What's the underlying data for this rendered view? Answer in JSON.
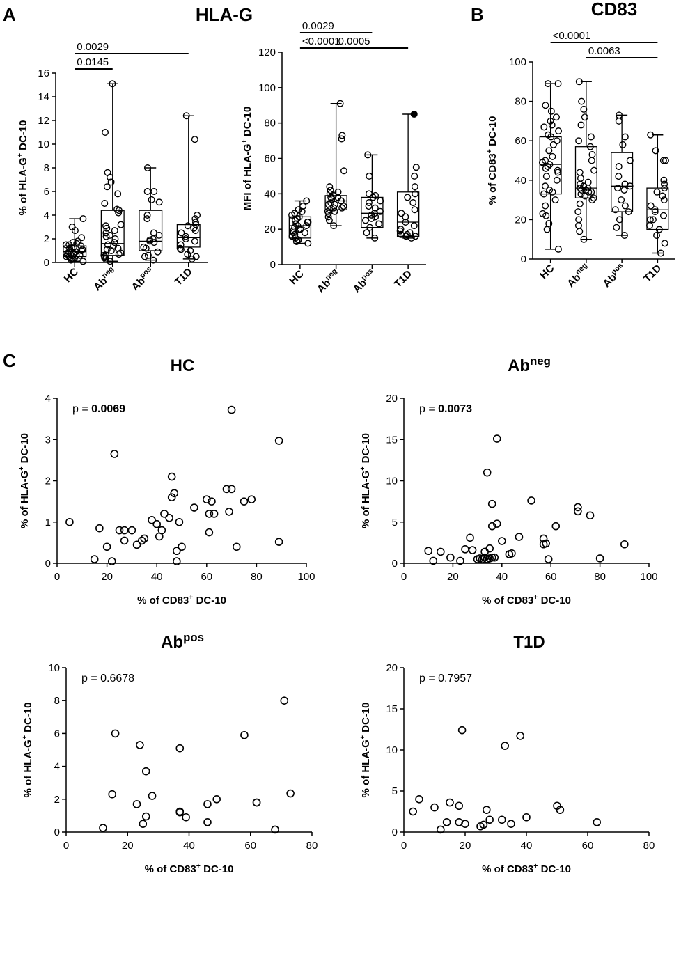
{
  "figure": {
    "panels": [
      {
        "letter": "A",
        "title": "HLA-G"
      },
      {
        "letter": "B",
        "title": "CD83"
      },
      {
        "letter": "C",
        "title": ""
      }
    ]
  },
  "chart_data": [
    {
      "id": "boxA1",
      "type": "box",
      "ylabel_parts": [
        {
          "t": "% of HLA-G"
        },
        {
          "t": "+",
          "sup": true
        },
        {
          "t": " DC-10"
        }
      ],
      "ylim": [
        0,
        16
      ],
      "yticks": [
        0,
        2,
        4,
        6,
        8,
        10,
        12,
        14,
        16
      ],
      "categories": [
        [
          {
            "t": "HC"
          }
        ],
        [
          {
            "t": "Ab"
          },
          {
            "t": "neg",
            "sup": true
          }
        ],
        [
          {
            "t": "Ab"
          },
          {
            "t": "pos",
            "sup": true
          }
        ],
        [
          {
            "t": "T1D"
          }
        ]
      ],
      "boxes": [
        {
          "min": 0.1,
          "q1": 0.5,
          "median": 0.9,
          "q3": 1.4,
          "max": 3.7
        },
        {
          "min": 0.1,
          "q1": 0.6,
          "median": 1.6,
          "q3": 4.4,
          "max": 15.1
        },
        {
          "min": 0.2,
          "q1": 1.0,
          "median": 1.8,
          "q3": 4.4,
          "max": 8.0
        },
        {
          "min": 0.3,
          "q1": 1.3,
          "median": 2.1,
          "q3": 3.2,
          "max": 12.4
        }
      ],
      "points": [
        [
          0.1,
          0.2,
          0.3,
          0.4,
          0.5,
          0.5,
          0.6,
          0.7,
          0.8,
          0.9,
          1.0,
          1.0,
          1.1,
          1.2,
          1.2,
          1.3,
          1.5,
          1.5,
          1.6,
          1.7,
          1.8,
          2.1,
          2.7,
          3.0,
          3.7,
          0.8,
          0.6,
          0.4,
          1.4,
          0.9
        ],
        [
          0.1,
          0.3,
          0.4,
          0.5,
          0.6,
          0.6,
          0.7,
          0.8,
          1.0,
          1.1,
          1.2,
          1.5,
          1.7,
          2.3,
          2.5,
          2.7,
          2.9,
          3.1,
          3.2,
          4.2,
          4.4,
          4.5,
          5.0,
          5.8,
          6.4,
          6.8,
          7.2,
          7.6,
          11.0,
          15.1,
          2.2,
          2.0,
          1.4
        ],
        [
          0.2,
          0.5,
          0.6,
          0.9,
          1.3,
          1.7,
          1.9,
          2.0,
          2.3,
          2.5,
          3.7,
          4.0,
          5.1,
          5.3,
          6.0,
          6.0,
          8.0,
          1.2,
          1.8
        ],
        [
          0.3,
          0.5,
          0.7,
          1.0,
          1.2,
          1.5,
          1.8,
          2.0,
          2.2,
          2.5,
          2.7,
          2.9,
          3.1,
          3.2,
          3.4,
          3.7,
          4.0,
          10.4,
          12.4,
          1.1
        ]
      ],
      "filled_points": [],
      "comparisons": [
        {
          "from": 0,
          "to": 3,
          "level": 2,
          "label": "0.0029"
        },
        {
          "from": 0,
          "to": 1,
          "level": 1,
          "label": "0.0145"
        }
      ]
    },
    {
      "id": "boxA2",
      "type": "box",
      "ylabel_parts": [
        {
          "t": "MFI of HLA-G"
        },
        {
          "t": "+",
          "sup": true
        },
        {
          "t": " DC-10"
        }
      ],
      "ylim": [
        0,
        120
      ],
      "yticks": [
        0,
        20,
        40,
        60,
        80,
        100,
        120
      ],
      "categories": [
        [
          {
            "t": "HC"
          }
        ],
        [
          {
            "t": "Ab"
          },
          {
            "t": "neg",
            "sup": true
          }
        ],
        [
          {
            "t": "Ab"
          },
          {
            "t": "pos",
            "sup": true
          }
        ],
        [
          {
            "t": "T1D"
          }
        ]
      ],
      "boxes": [
        {
          "min": 12,
          "q1": 15,
          "median": 22,
          "q3": 27,
          "max": 36
        },
        {
          "min": 22,
          "q1": 31,
          "median": 36,
          "q3": 39,
          "max": 91
        },
        {
          "min": 15,
          "q1": 21,
          "median": 29,
          "q3": 38,
          "max": 62
        },
        {
          "min": 15,
          "q1": 16,
          "median": 24,
          "q3": 41,
          "max": 85
        }
      ],
      "points": [
        [
          12,
          13,
          14,
          15,
          16,
          17,
          18,
          19,
          20,
          21,
          22,
          23,
          24,
          25,
          26,
          27,
          28,
          29,
          30,
          31,
          33,
          36,
          20,
          22,
          24,
          18
        ],
        [
          22,
          25,
          27,
          29,
          30,
          31,
          32,
          33,
          34,
          35,
          36,
          37,
          38,
          39,
          40,
          41,
          42,
          44,
          53,
          71,
          73,
          91,
          34,
          36,
          38,
          30,
          32
        ],
        [
          15,
          18,
          21,
          23,
          25,
          27,
          28,
          29,
          30,
          32,
          33,
          35,
          36,
          38,
          39,
          40,
          50,
          62,
          26
        ],
        [
          15,
          16,
          17,
          18,
          19,
          20,
          22,
          24,
          27,
          29,
          31,
          35,
          38,
          40,
          44,
          50,
          55,
          85,
          16,
          17
        ]
      ],
      "filled_points": [
        {
          "group": 3,
          "value": 85
        }
      ],
      "comparisons": [
        {
          "from": 0,
          "to": 2,
          "level": 2,
          "label": "0.0029"
        },
        {
          "from": 0,
          "to": 1,
          "level": 1,
          "label": "<0.0001"
        },
        {
          "from": 1,
          "to": 3,
          "level": 1,
          "label": "0.0005"
        }
      ]
    },
    {
      "id": "boxB",
      "type": "box",
      "ylabel_parts": [
        {
          "t": "% of CD83"
        },
        {
          "t": "+",
          "sup": true
        },
        {
          "t": " DC-10"
        }
      ],
      "ylim": [
        0,
        100
      ],
      "yticks": [
        0,
        20,
        40,
        60,
        80,
        100
      ],
      "categories": [
        [
          {
            "t": "HC"
          }
        ],
        [
          {
            "t": "Ab"
          },
          {
            "t": "neg",
            "sup": true
          }
        ],
        [
          {
            "t": "Ab"
          },
          {
            "t": "pos",
            "sup": true
          }
        ],
        [
          {
            "t": "T1D"
          }
        ]
      ],
      "boxes": [
        {
          "min": 5,
          "q1": 33,
          "median": 48,
          "q3": 62,
          "max": 89
        },
        {
          "min": 10,
          "q1": 31,
          "median": 36,
          "q3": 57,
          "max": 90
        },
        {
          "min": 12,
          "q1": 24,
          "median": 37,
          "q3": 54,
          "max": 73
        },
        {
          "min": 3,
          "q1": 15,
          "median": 25,
          "q3": 36,
          "max": 63
        }
      ],
      "points": [
        [
          5,
          15,
          18,
          22,
          23,
          27,
          30,
          33,
          35,
          37,
          40,
          42,
          44,
          46,
          47,
          48,
          49,
          50,
          52,
          55,
          58,
          60,
          62,
          63,
          65,
          67,
          68,
          70,
          72,
          75,
          78,
          89,
          89,
          34,
          45
        ],
        [
          10,
          14,
          17,
          20,
          24,
          28,
          30,
          31,
          32,
          33,
          34,
          35,
          36,
          37,
          38,
          39,
          41,
          44,
          45,
          50,
          53,
          57,
          60,
          62,
          68,
          72,
          76,
          80,
          90,
          35,
          36,
          34
        ],
        [
          12,
          16,
          20,
          24,
          25,
          27,
          30,
          35,
          37,
          38,
          42,
          47,
          50,
          58,
          62,
          70,
          73,
          36
        ],
        [
          3,
          8,
          12,
          15,
          17,
          20,
          22,
          24,
          25,
          27,
          30,
          32,
          34,
          36,
          38,
          40,
          50,
          50,
          55,
          63,
          20
        ]
      ],
      "filled_points": [],
      "comparisons": [
        {
          "from": 0,
          "to": 3,
          "level": 2,
          "label": "<0.0001"
        },
        {
          "from": 1,
          "to": 3,
          "level": 1,
          "label": "0.0063"
        }
      ]
    },
    {
      "id": "scHC",
      "type": "scatter",
      "title_parts": [
        {
          "t": "HC"
        }
      ],
      "p_prefix": "p = ",
      "p_value": "0.0069",
      "p_bold": true,
      "xlabel_parts": [
        {
          "t": "% of CD83"
        },
        {
          "t": "+",
          "sup": true
        },
        {
          "t": " DC-10"
        }
      ],
      "ylabel_parts": [
        {
          "t": "% of HLA-G"
        },
        {
          "t": "+",
          "sup": true
        },
        {
          "t": " DC-10"
        }
      ],
      "xlim": [
        0,
        100
      ],
      "xticks": [
        0,
        20,
        40,
        60,
        80,
        100
      ],
      "ylim": [
        0,
        4
      ],
      "yticks": [
        0,
        1,
        2,
        3,
        4
      ],
      "points": [
        [
          5,
          1.0
        ],
        [
          15,
          0.1
        ],
        [
          17,
          0.85
        ],
        [
          20,
          0.4
        ],
        [
          22,
          0.05
        ],
        [
          23,
          2.65
        ],
        [
          25,
          0.8
        ],
        [
          27,
          0.55
        ],
        [
          27,
          0.8
        ],
        [
          30,
          0.8
        ],
        [
          32,
          0.45
        ],
        [
          34,
          0.55
        ],
        [
          35,
          0.6
        ],
        [
          38,
          1.05
        ],
        [
          40,
          0.95
        ],
        [
          41,
          0.65
        ],
        [
          42,
          0.8
        ],
        [
          43,
          1.2
        ],
        [
          45,
          1.1
        ],
        [
          46,
          1.6
        ],
        [
          46,
          2.1
        ],
        [
          47,
          1.7
        ],
        [
          48,
          0.3
        ],
        [
          48,
          0.05
        ],
        [
          49,
          1.0
        ],
        [
          50,
          0.4
        ],
        [
          55,
          1.35
        ],
        [
          60,
          1.55
        ],
        [
          61,
          1.2
        ],
        [
          61,
          0.75
        ],
        [
          62,
          1.5
        ],
        [
          63,
          1.2
        ],
        [
          68,
          1.8
        ],
        [
          69,
          1.25
        ],
        [
          70,
          3.72
        ],
        [
          70,
          1.8
        ],
        [
          72,
          0.4
        ],
        [
          75,
          1.5
        ],
        [
          78,
          1.55
        ],
        [
          89,
          2.97
        ],
        [
          89,
          0.52
        ]
      ]
    },
    {
      "id": "scAbneg",
      "type": "scatter",
      "title_parts": [
        {
          "t": "Ab"
        },
        {
          "t": "neg",
          "sup": true
        }
      ],
      "p_prefix": "p = ",
      "p_value": "0.0073",
      "p_bold": true,
      "xlabel_parts": [
        {
          "t": "% of CD83"
        },
        {
          "t": "+",
          "sup": true
        },
        {
          "t": " DC-10"
        }
      ],
      "ylabel_parts": [
        {
          "t": "% of HLA-G"
        },
        {
          "t": "+",
          "sup": true
        },
        {
          "t": " DC-10"
        }
      ],
      "xlim": [
        0,
        100
      ],
      "xticks": [
        0,
        20,
        40,
        60,
        80,
        100
      ],
      "ylim": [
        0,
        20
      ],
      "yticks": [
        0,
        5,
        10,
        15,
        20
      ],
      "points": [
        [
          10,
          1.5
        ],
        [
          12,
          0.3
        ],
        [
          15,
          1.4
        ],
        [
          19,
          0.7
        ],
        [
          23,
          0.3
        ],
        [
          25,
          1.7
        ],
        [
          27,
          3.1
        ],
        [
          28,
          1.6
        ],
        [
          30,
          0.5
        ],
        [
          31,
          0.6
        ],
        [
          32,
          0.5
        ],
        [
          33,
          1.4
        ],
        [
          33,
          0.7
        ],
        [
          34,
          0.5
        ],
        [
          34,
          11.0
        ],
        [
          35,
          1.8
        ],
        [
          35,
          0.6
        ],
        [
          36,
          0.7
        ],
        [
          36,
          4.5
        ],
        [
          36,
          7.2
        ],
        [
          37,
          0.7
        ],
        [
          38,
          15.1
        ],
        [
          38,
          4.8
        ],
        [
          40,
          2.7
        ],
        [
          43,
          1.1
        ],
        [
          44,
          1.2
        ],
        [
          47,
          3.2
        ],
        [
          52,
          7.6
        ],
        [
          57,
          3.0
        ],
        [
          57,
          2.3
        ],
        [
          58,
          2.4
        ],
        [
          59,
          0.5
        ],
        [
          62,
          4.5
        ],
        [
          71,
          6.8
        ],
        [
          71,
          6.3
        ],
        [
          76,
          5.8
        ],
        [
          80,
          0.6
        ],
        [
          90,
          2.3
        ]
      ]
    },
    {
      "id": "scAbpos",
      "type": "scatter",
      "title_parts": [
        {
          "t": "Ab"
        },
        {
          "t": "pos",
          "sup": true
        }
      ],
      "p_prefix": "p = ",
      "p_value": "0.6678",
      "p_bold": false,
      "xlabel_parts": [
        {
          "t": "% of CD83"
        },
        {
          "t": "+",
          "sup": true
        },
        {
          "t": " DC-10"
        }
      ],
      "ylabel_parts": [
        {
          "t": "% of HLA-G"
        },
        {
          "t": "+",
          "sup": true
        },
        {
          "t": " DC-10"
        }
      ],
      "xlim": [
        0,
        80
      ],
      "xticks": [
        0,
        20,
        40,
        60,
        80
      ],
      "ylim": [
        0,
        10
      ],
      "yticks": [
        0,
        2,
        4,
        6,
        8,
        10
      ],
      "points": [
        [
          12,
          0.25
        ],
        [
          15,
          2.3
        ],
        [
          16,
          6.0
        ],
        [
          23,
          1.7
        ],
        [
          24,
          5.3
        ],
        [
          25,
          0.5
        ],
        [
          26,
          3.7
        ],
        [
          26,
          0.95
        ],
        [
          28,
          2.2
        ],
        [
          37,
          5.1
        ],
        [
          37,
          1.25
        ],
        [
          37,
          1.2
        ],
        [
          39,
          0.9
        ],
        [
          46,
          1.7
        ],
        [
          46,
          0.6
        ],
        [
          49,
          2.0
        ],
        [
          58,
          5.9
        ],
        [
          62,
          1.8
        ],
        [
          62,
          1.8
        ],
        [
          68,
          0.15
        ],
        [
          71,
          8.0
        ],
        [
          73,
          2.35
        ]
      ]
    },
    {
      "id": "scT1D",
      "type": "scatter",
      "title_parts": [
        {
          "t": "T1D"
        }
      ],
      "p_prefix": "p = ",
      "p_value": "0.7957",
      "p_bold": false,
      "xlabel_parts": [
        {
          "t": "% of CD83"
        },
        {
          "t": "+",
          "sup": true
        },
        {
          "t": " DC-10"
        }
      ],
      "ylabel_parts": [
        {
          "t": "% of HLA-G"
        },
        {
          "t": "+",
          "sup": true
        },
        {
          "t": " DC-10"
        }
      ],
      "xlim": [
        0,
        80
      ],
      "xticks": [
        0,
        20,
        40,
        60,
        80
      ],
      "ylim": [
        0,
        20
      ],
      "yticks": [
        0,
        5,
        10,
        15,
        20
      ],
      "points": [
        [
          3,
          2.5
        ],
        [
          5,
          4.0
        ],
        [
          10,
          3.0
        ],
        [
          12,
          0.3
        ],
        [
          14,
          1.2
        ],
        [
          15,
          3.6
        ],
        [
          18,
          3.2
        ],
        [
          18,
          1.2
        ],
        [
          19,
          12.4
        ],
        [
          20,
          1.0
        ],
        [
          25,
          0.7
        ],
        [
          26,
          0.9
        ],
        [
          27,
          2.7
        ],
        [
          28,
          1.5
        ],
        [
          32,
          1.5
        ],
        [
          33,
          10.5
        ],
        [
          35,
          1.0
        ],
        [
          38,
          11.7
        ],
        [
          40,
          1.8
        ],
        [
          50,
          3.2
        ],
        [
          51,
          2.7
        ],
        [
          63,
          1.2
        ]
      ]
    }
  ]
}
